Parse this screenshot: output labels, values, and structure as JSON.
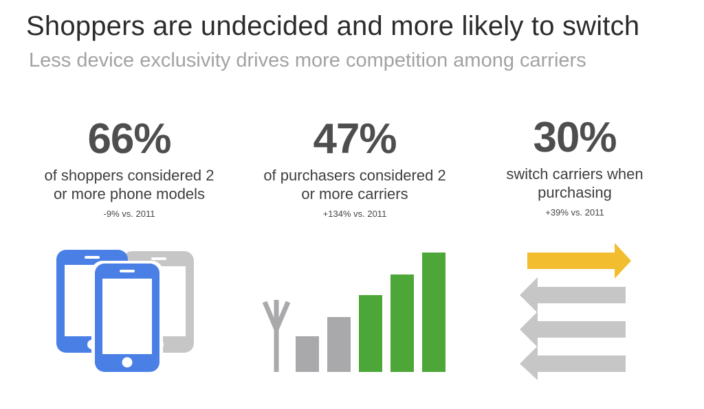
{
  "header": {
    "title": "Shoppers are undecided and more likely to switch",
    "subtitle": "Less device exclusivity drives more competition among carriers"
  },
  "stats": [
    {
      "value": "66%",
      "description": "of shoppers considered 2\nor more phone models",
      "change": "-9% vs. 2011",
      "icon": "phones-icon"
    },
    {
      "value": "47%",
      "description": "of purchasers considered 2\nor more carriers",
      "change": "+134% vs. 2011",
      "icon": "signal-bars-icon"
    },
    {
      "value": "30%",
      "description": "switch carriers when\npurchasing",
      "change": "+39% vs. 2011",
      "icon": "switch-arrows-icon"
    }
  ],
  "colors": {
    "blue": "#4a7fe6",
    "gray": "#c6c6c6",
    "dark_gray": "#a9a9ab",
    "green": "#4ca638",
    "yellow": "#f2bd2f",
    "title": "#2b2b2b",
    "subtitle": "#a2a2a2",
    "value": "#4e4e4e"
  }
}
